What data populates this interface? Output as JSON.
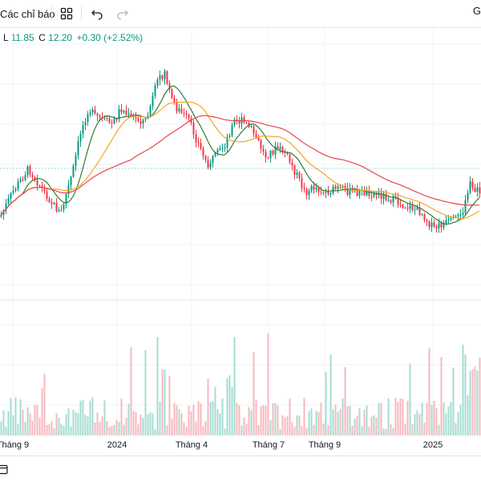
{
  "toolbar": {
    "indicators_label": "Các chỉ báo",
    "cutoff_label": "G",
    "icons": [
      "layout-grid-icon",
      "undo-icon",
      "redo-icon"
    ]
  },
  "legend": {
    "low_label": "L",
    "low_value": "11.85",
    "close_label": "C",
    "close_value": "12.20",
    "change": "+0.30 (+2.52%)"
  },
  "colors": {
    "up": "#089981",
    "down": "#f23645",
    "ma_short": "#2e7d32",
    "ma_mid": "#f5a623",
    "ma_long": "#e8474c",
    "grid": "#f0f3fa",
    "dotted": "#9fd8cf"
  },
  "xaxis": {
    "labels": [
      "Tháng 9",
      "2024",
      "Tháng 4",
      "Tháng 7",
      "Tháng 9",
      "2025"
    ]
  },
  "chart_data": {
    "type": "candlestick",
    "series_names": [],
    "price_last": 12.2,
    "volume_shown": true
  }
}
